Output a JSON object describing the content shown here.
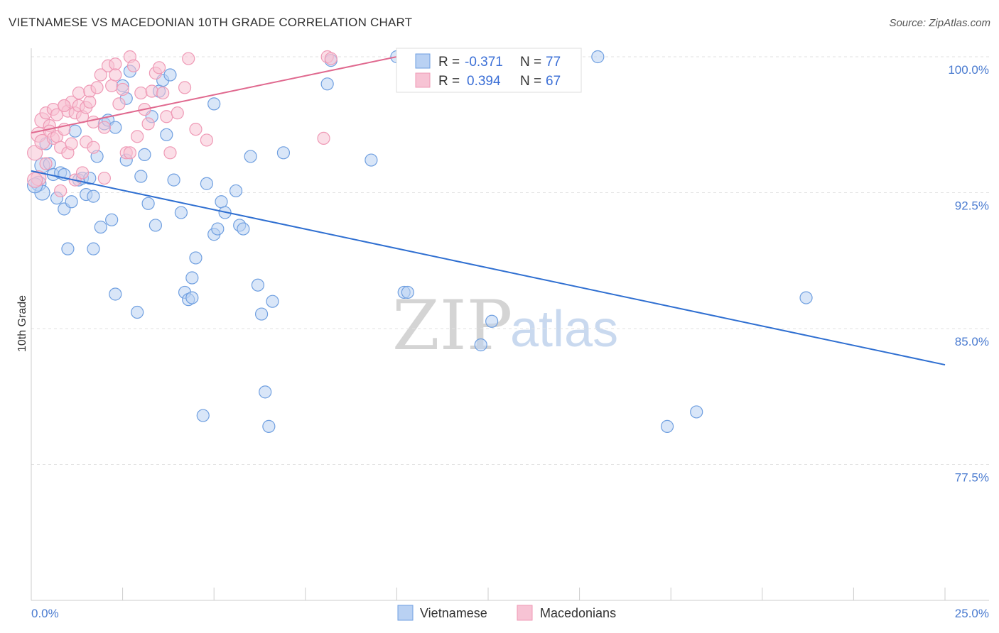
{
  "header": {
    "title": "VIETNAMESE VS MACEDONIAN 10TH GRADE CORRELATION CHART",
    "source": "Source: ZipAtlas.com"
  },
  "watermark": {
    "zip": "ZIP",
    "atlas": "atlas"
  },
  "legend_box": {
    "rows": [
      {
        "r_label": "R = ",
        "r_value": "-0.371",
        "n_label": "N = ",
        "n_value": "77"
      },
      {
        "r_label": "R = ",
        "r_value": "0.394",
        "n_label": "N = ",
        "n_value": "67"
      }
    ]
  },
  "chart_data": {
    "type": "scatter",
    "title": "VIETNAMESE VS MACEDONIAN 10TH GRADE CORRELATION CHART",
    "xlabel": "",
    "ylabel": "10th Grade",
    "xlim": [
      0,
      25
    ],
    "ylim": [
      70.5,
      101
    ],
    "x_tick_labels": [
      "0.0%",
      "25.0%"
    ],
    "y_ticks": [
      77.5,
      85.0,
      92.5,
      100.0
    ],
    "y_tick_labels": [
      "77.5%",
      "85.0%",
      "92.5%",
      "100.0%"
    ],
    "grid": true,
    "legend_position": "top-center",
    "series": [
      {
        "name": "Vietnamese",
        "color": "#6f9fe0",
        "fill": "#b9d1f3",
        "trend_color": "#2f6fd1",
        "R": -0.371,
        "N": 77,
        "trend": {
          "x": [
            0.0,
            25.0
          ],
          "y": [
            93.7,
            83.0
          ]
        },
        "points": [
          [
            0.2,
            93.0
          ],
          [
            0.3,
            92.5
          ],
          [
            0.3,
            94.0
          ],
          [
            0.4,
            95.2
          ],
          [
            0.5,
            94.1
          ],
          [
            0.6,
            93.5
          ],
          [
            0.7,
            92.2
          ],
          [
            0.8,
            93.6
          ],
          [
            0.9,
            91.6
          ],
          [
            0.9,
            93.5
          ],
          [
            1.0,
            89.4
          ],
          [
            1.1,
            92.0
          ],
          [
            1.2,
            95.9
          ],
          [
            1.3,
            93.2
          ],
          [
            1.4,
            93.3
          ],
          [
            1.5,
            92.4
          ],
          [
            1.6,
            93.3
          ],
          [
            1.7,
            92.3
          ],
          [
            1.7,
            89.4
          ],
          [
            1.8,
            94.5
          ],
          [
            1.9,
            90.6
          ],
          [
            2.0,
            96.3
          ],
          [
            2.1,
            96.5
          ],
          [
            2.2,
            91.0
          ],
          [
            2.3,
            96.1
          ],
          [
            2.3,
            86.9
          ],
          [
            2.5,
            98.4
          ],
          [
            2.6,
            97.7
          ],
          [
            2.6,
            94.3
          ],
          [
            2.7,
            99.2
          ],
          [
            2.9,
            85.9
          ],
          [
            3.0,
            93.4
          ],
          [
            3.1,
            94.6
          ],
          [
            3.2,
            91.9
          ],
          [
            3.3,
            96.7
          ],
          [
            3.4,
            90.7
          ],
          [
            3.5,
            98.1
          ],
          [
            3.6,
            98.7
          ],
          [
            3.7,
            95.7
          ],
          [
            3.8,
            99.0
          ],
          [
            3.9,
            93.2
          ],
          [
            4.1,
            91.4
          ],
          [
            4.2,
            87.0
          ],
          [
            4.3,
            86.6
          ],
          [
            4.4,
            86.7
          ],
          [
            4.4,
            87.8
          ],
          [
            4.5,
            88.9
          ],
          [
            4.7,
            80.2
          ],
          [
            4.8,
            93.0
          ],
          [
            5.0,
            97.4
          ],
          [
            5.0,
            90.2
          ],
          [
            5.1,
            90.5
          ],
          [
            5.2,
            92.0
          ],
          [
            5.3,
            91.4
          ],
          [
            5.6,
            92.6
          ],
          [
            5.7,
            90.7
          ],
          [
            5.8,
            90.5
          ],
          [
            6.0,
            94.5
          ],
          [
            6.2,
            87.4
          ],
          [
            6.3,
            85.8
          ],
          [
            6.4,
            81.5
          ],
          [
            6.5,
            79.6
          ],
          [
            6.6,
            86.5
          ],
          [
            6.9,
            94.7
          ],
          [
            8.1,
            98.5
          ],
          [
            8.2,
            99.8
          ],
          [
            9.3,
            94.3
          ],
          [
            10.0,
            100.0
          ],
          [
            10.2,
            87.0
          ],
          [
            10.3,
            87.0
          ],
          [
            12.3,
            84.1
          ],
          [
            12.6,
            85.4
          ],
          [
            15.5,
            100.0
          ],
          [
            17.4,
            79.6
          ],
          [
            18.2,
            80.4
          ],
          [
            21.2,
            86.7
          ],
          [
            0.1,
            92.9
          ]
        ]
      },
      {
        "name": "Macedonians",
        "color": "#ef9ab6",
        "fill": "#f7c3d4",
        "trend_color": "#e0698f",
        "R": 0.394,
        "N": 67,
        "trend": {
          "x": [
            0.0,
            10.0
          ],
          "y": [
            95.8,
            100.0
          ]
        },
        "points": [
          [
            0.1,
            94.7
          ],
          [
            0.2,
            95.7
          ],
          [
            0.2,
            93.3
          ],
          [
            0.3,
            96.5
          ],
          [
            0.3,
            95.3
          ],
          [
            0.4,
            96.9
          ],
          [
            0.4,
            94.1
          ],
          [
            0.5,
            96.2
          ],
          [
            0.5,
            95.9
          ],
          [
            0.6,
            97.1
          ],
          [
            0.6,
            95.5
          ],
          [
            0.7,
            95.6
          ],
          [
            0.7,
            96.8
          ],
          [
            0.8,
            95.0
          ],
          [
            0.8,
            92.6
          ],
          [
            0.9,
            97.3
          ],
          [
            0.9,
            96.0
          ],
          [
            1.0,
            94.7
          ],
          [
            1.0,
            97.0
          ],
          [
            1.1,
            97.5
          ],
          [
            1.1,
            95.2
          ],
          [
            1.2,
            96.9
          ],
          [
            1.2,
            93.2
          ],
          [
            1.3,
            98.0
          ],
          [
            1.3,
            97.3
          ],
          [
            1.4,
            93.6
          ],
          [
            1.4,
            96.7
          ],
          [
            1.5,
            97.2
          ],
          [
            1.5,
            95.3
          ],
          [
            1.6,
            98.1
          ],
          [
            1.6,
            97.5
          ],
          [
            1.7,
            96.4
          ],
          [
            1.7,
            95.0
          ],
          [
            1.8,
            98.3
          ],
          [
            1.9,
            99.0
          ],
          [
            2.0,
            96.1
          ],
          [
            2.0,
            93.3
          ],
          [
            2.1,
            99.5
          ],
          [
            2.2,
            98.4
          ],
          [
            2.3,
            99.6
          ],
          [
            2.3,
            99.0
          ],
          [
            2.4,
            97.4
          ],
          [
            2.5,
            98.2
          ],
          [
            2.6,
            94.7
          ],
          [
            2.7,
            100.0
          ],
          [
            2.7,
            94.7
          ],
          [
            2.8,
            99.5
          ],
          [
            2.9,
            95.6
          ],
          [
            3.0,
            98.0
          ],
          [
            3.1,
            97.1
          ],
          [
            3.2,
            96.3
          ],
          [
            3.3,
            98.1
          ],
          [
            3.4,
            99.1
          ],
          [
            3.5,
            99.4
          ],
          [
            3.6,
            98.0
          ],
          [
            3.7,
            96.7
          ],
          [
            3.8,
            94.7
          ],
          [
            4.0,
            96.9
          ],
          [
            4.2,
            98.3
          ],
          [
            4.3,
            99.9
          ],
          [
            4.5,
            96.0
          ],
          [
            4.8,
            95.4
          ],
          [
            8.0,
            95.5
          ],
          [
            8.1,
            100.0
          ],
          [
            8.2,
            99.9
          ],
          [
            0.1,
            93.2
          ],
          [
            0.9,
            97.3
          ]
        ]
      }
    ]
  }
}
